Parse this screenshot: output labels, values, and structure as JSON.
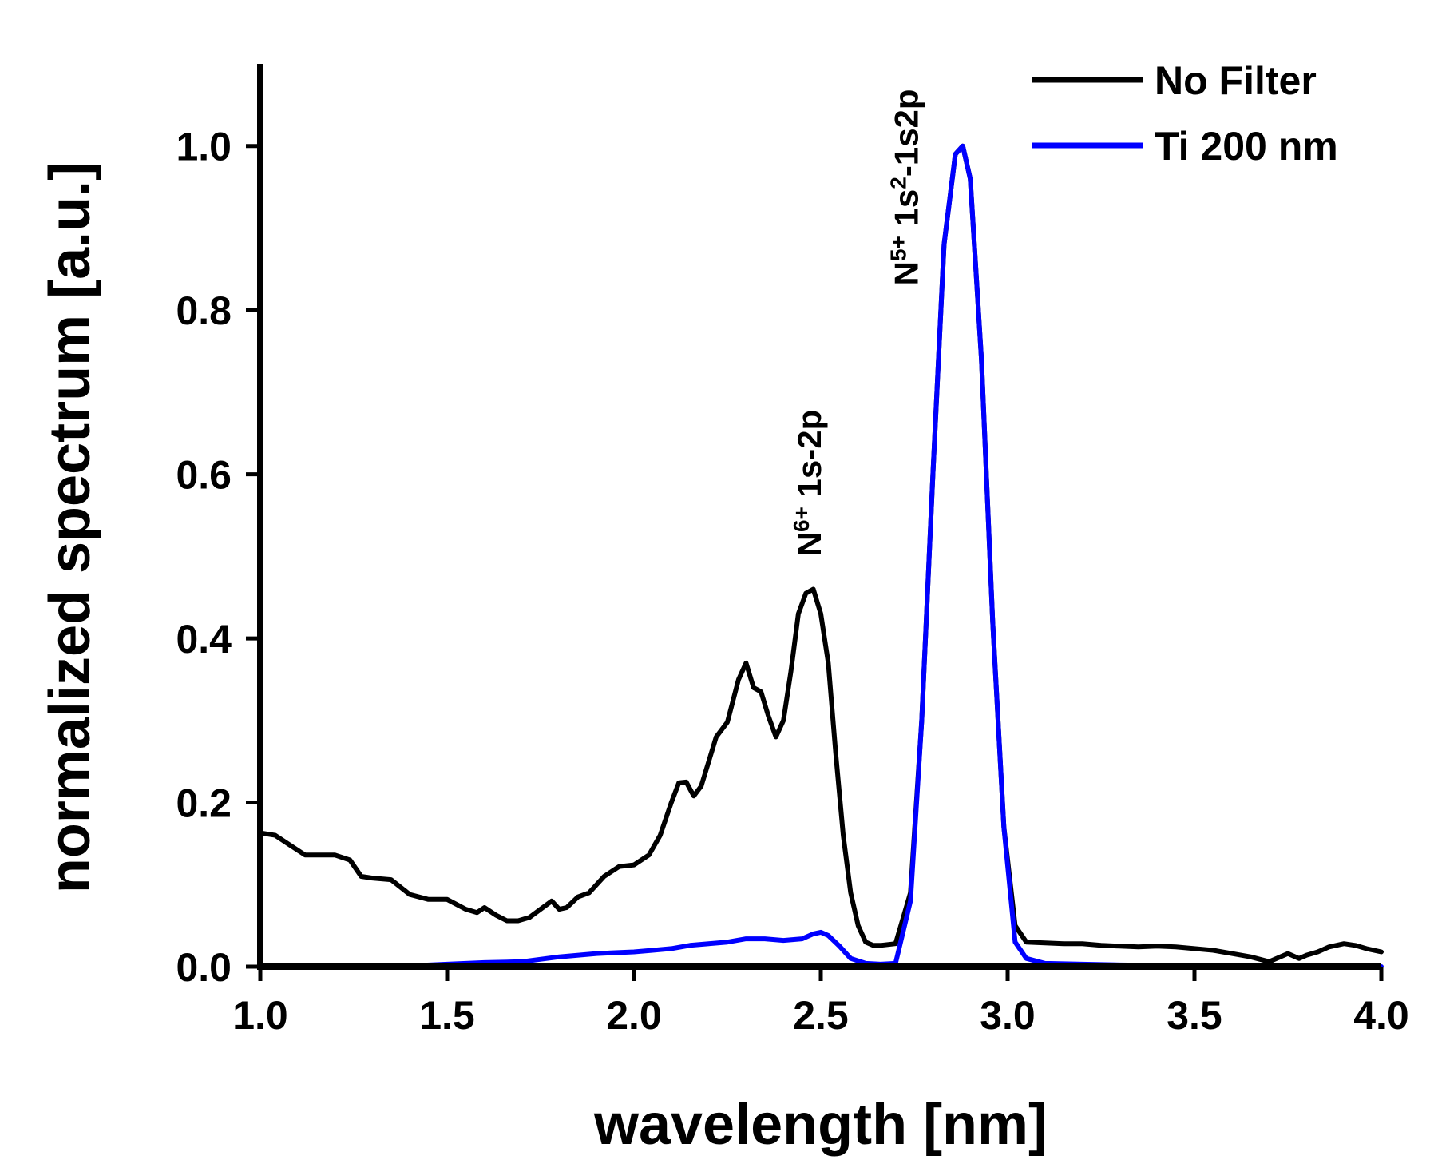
{
  "chart_data": {
    "type": "line",
    "title": "",
    "xlabel": "wavelength [nm]",
    "ylabel": "normalized spectrum [a.u.]",
    "xlim": [
      1.0,
      4.0
    ],
    "ylim": [
      0.0,
      1.1
    ],
    "xticks": [
      1.0,
      1.5,
      2.0,
      2.5,
      3.0,
      3.5,
      4.0
    ],
    "xtick_labels": [
      "1.0",
      "1.5",
      "2.0",
      "2.5",
      "3.0",
      "3.5",
      "4.0"
    ],
    "yticks": [
      0.0,
      0.2,
      0.4,
      0.6,
      0.8,
      1.0
    ],
    "ytick_labels": [
      "0.0",
      "0.2",
      "0.4",
      "0.6",
      "0.8",
      "1.0"
    ],
    "grid": false,
    "legend": {
      "position": "top-right",
      "entries": [
        "No Filter",
        "Ti 200 nm"
      ]
    },
    "annotations": [
      {
        "base": "N",
        "sup": "6+",
        "rest": " 1s-2p",
        "x": 2.5,
        "y": 0.5,
        "rotation": -90
      },
      {
        "base": "N",
        "sup": "5+",
        "rest": " 1s",
        "sup2": "2",
        "rest2": "-1s2p",
        "x": 2.76,
        "y": 0.83,
        "rotation": -90
      }
    ],
    "series": [
      {
        "name": "No Filter",
        "color": "#000000",
        "x": [
          1.0,
          1.04,
          1.08,
          1.12,
          1.16,
          1.2,
          1.24,
          1.27,
          1.3,
          1.35,
          1.4,
          1.45,
          1.5,
          1.55,
          1.58,
          1.6,
          1.63,
          1.66,
          1.69,
          1.72,
          1.75,
          1.78,
          1.8,
          1.82,
          1.85,
          1.88,
          1.92,
          1.96,
          2.0,
          2.04,
          2.07,
          2.1,
          2.12,
          2.14,
          2.16,
          2.18,
          2.2,
          2.22,
          2.25,
          2.28,
          2.3,
          2.32,
          2.34,
          2.36,
          2.38,
          2.4,
          2.42,
          2.44,
          2.46,
          2.48,
          2.5,
          2.52,
          2.54,
          2.56,
          2.58,
          2.6,
          2.62,
          2.64,
          2.66,
          2.7,
          2.74,
          2.77,
          2.8,
          2.83,
          2.86,
          2.88,
          2.9,
          2.93,
          2.96,
          2.99,
          3.02,
          3.05,
          3.1,
          3.15,
          3.2,
          3.25,
          3.3,
          3.35,
          3.4,
          3.45,
          3.5,
          3.55,
          3.6,
          3.65,
          3.7,
          3.75,
          3.78,
          3.8,
          3.83,
          3.86,
          3.9,
          3.93,
          3.96,
          4.0
        ],
        "values": [
          0.163,
          0.16,
          0.148,
          0.136,
          0.136,
          0.136,
          0.13,
          0.11,
          0.108,
          0.106,
          0.088,
          0.082,
          0.082,
          0.07,
          0.066,
          0.072,
          0.063,
          0.056,
          0.056,
          0.06,
          0.07,
          0.08,
          0.07,
          0.072,
          0.085,
          0.09,
          0.11,
          0.122,
          0.124,
          0.136,
          0.16,
          0.2,
          0.224,
          0.225,
          0.208,
          0.22,
          0.25,
          0.28,
          0.298,
          0.35,
          0.37,
          0.34,
          0.335,
          0.305,
          0.28,
          0.3,
          0.36,
          0.43,
          0.455,
          0.46,
          0.43,
          0.37,
          0.26,
          0.16,
          0.09,
          0.05,
          0.03,
          0.026,
          0.026,
          0.028,
          0.09,
          0.3,
          0.6,
          0.88,
          0.99,
          1.0,
          0.96,
          0.74,
          0.42,
          0.17,
          0.05,
          0.03,
          0.029,
          0.028,
          0.028,
          0.026,
          0.025,
          0.024,
          0.025,
          0.024,
          0.022,
          0.02,
          0.016,
          0.012,
          0.006,
          0.016,
          0.01,
          0.014,
          0.018,
          0.024,
          0.028,
          0.026,
          0.022,
          0.018
        ]
      },
      {
        "name": "Ti 200 nm",
        "color": "#0000ff",
        "x": [
          1.0,
          1.2,
          1.4,
          1.5,
          1.6,
          1.7,
          1.8,
          1.9,
          2.0,
          2.05,
          2.1,
          2.15,
          2.2,
          2.25,
          2.3,
          2.35,
          2.4,
          2.45,
          2.48,
          2.5,
          2.52,
          2.55,
          2.58,
          2.62,
          2.66,
          2.7,
          2.74,
          2.77,
          2.8,
          2.83,
          2.86,
          2.88,
          2.9,
          2.93,
          2.96,
          2.99,
          3.02,
          3.05,
          3.1,
          3.2,
          3.3,
          3.5,
          3.7,
          4.0
        ],
        "values": [
          0.0,
          0.0,
          0.001,
          0.003,
          0.005,
          0.006,
          0.012,
          0.016,
          0.018,
          0.02,
          0.022,
          0.026,
          0.028,
          0.03,
          0.034,
          0.034,
          0.032,
          0.034,
          0.04,
          0.042,
          0.038,
          0.025,
          0.01,
          0.004,
          0.003,
          0.004,
          0.08,
          0.3,
          0.6,
          0.88,
          0.99,
          1.0,
          0.96,
          0.74,
          0.42,
          0.17,
          0.03,
          0.01,
          0.004,
          0.003,
          0.002,
          0.001,
          0.001,
          0.0
        ]
      }
    ]
  }
}
